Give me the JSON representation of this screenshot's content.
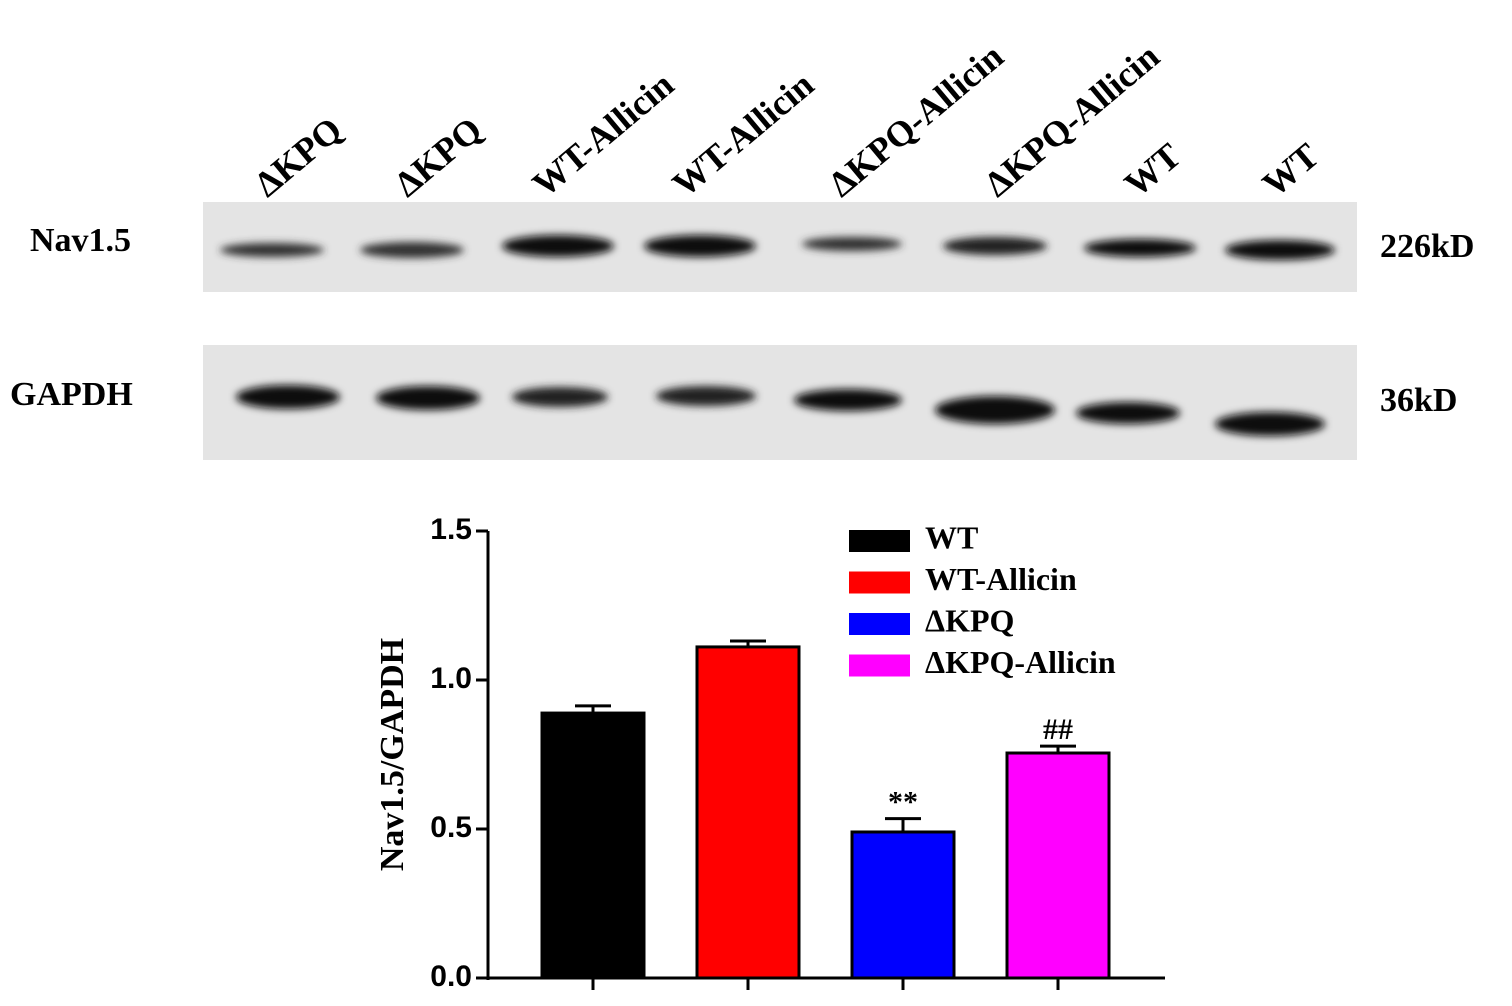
{
  "blot": {
    "lanes": [
      "ΔKPQ",
      "ΔKPQ",
      "WT-Allicin",
      "WT-Allicin",
      "ΔKPQ-Allicin",
      "ΔKPQ-Allicin",
      "WT",
      "WT"
    ],
    "rows": [
      {
        "label": "Nav1.5",
        "size": "226kD"
      },
      {
        "label": "GAPDH",
        "size": "36kD"
      }
    ]
  },
  "chart_data": {
    "type": "bar",
    "y_label": "Nav1.5/GAPDH",
    "categories": [
      null,
      null,
      null,
      null
    ],
    "values": [
      0.889,
      1.111,
      0.49,
      0.755
    ],
    "errors": [
      0.024,
      0.02,
      0.045,
      0.023
    ],
    "colors": [
      "#000000",
      "#ff0000",
      "#0000ff",
      "#ff00ff"
    ],
    "legend": [
      "WT",
      "WT-Allicin",
      "ΔKPQ",
      "ΔKPQ-Allicin"
    ],
    "annotations": [
      null,
      null,
      "**",
      "##"
    ],
    "ylim": [
      0,
      1.5
    ],
    "yticks": [
      {
        "value": 0,
        "label": "0.0"
      },
      0.5,
      {
        "value": 1,
        "label": "1.0"
      },
      1.5
    ]
  }
}
